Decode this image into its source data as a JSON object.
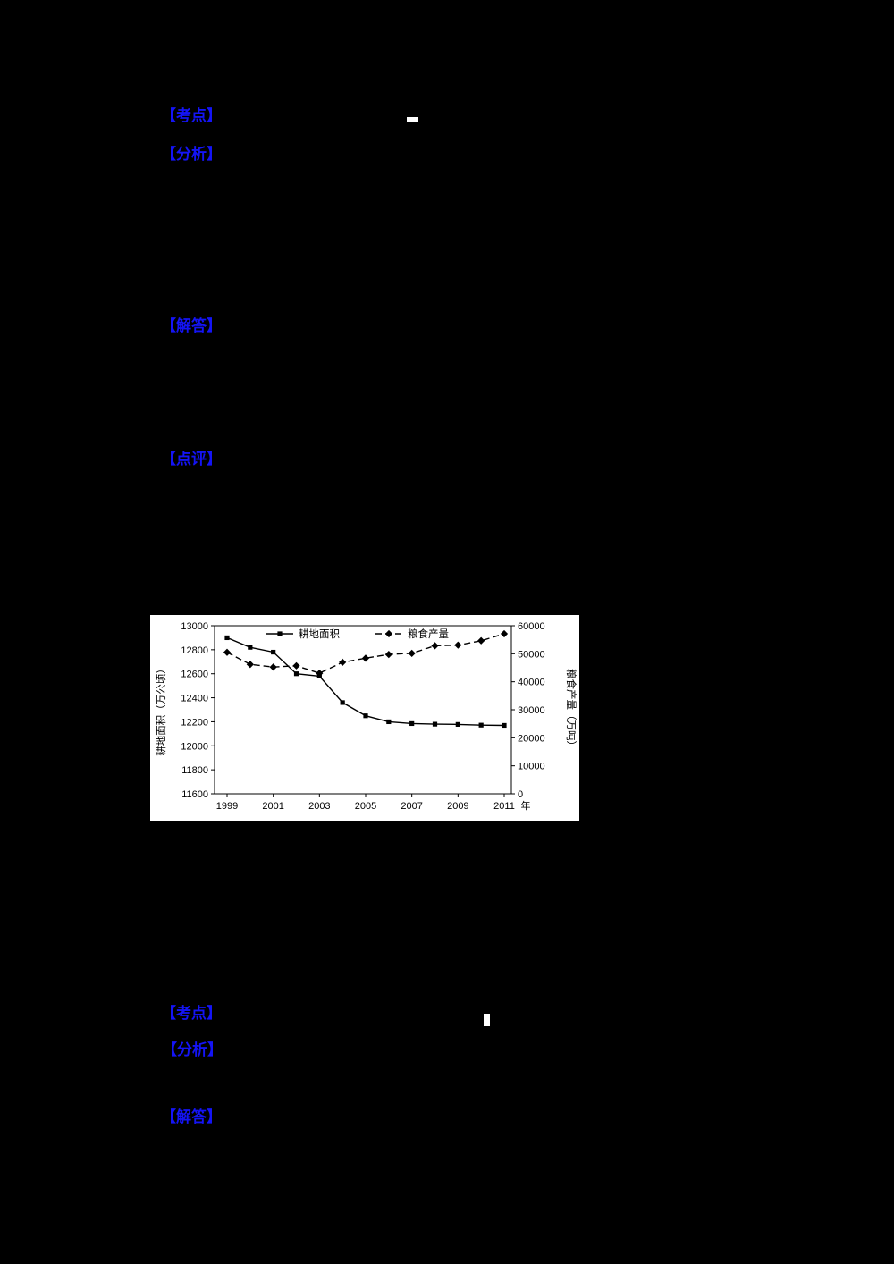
{
  "page": {
    "background": "#000000",
    "accent_blue": "#1414f5"
  },
  "labels": [
    {
      "text": "【考点】"
    },
    {
      "text": "【分析】"
    },
    {
      "text": "【解答】"
    },
    {
      "text": "【点评】"
    },
    {
      "text": "【考点】"
    },
    {
      "text": "【分析】"
    },
    {
      "text": "【解答】"
    }
  ],
  "chart_data": {
    "type": "line",
    "title": "",
    "x": [
      1999,
      2000,
      2001,
      2002,
      2003,
      2004,
      2005,
      2006,
      2007,
      2008,
      2009,
      2010,
      2011
    ],
    "x_axis": {
      "tick_years": [
        1999,
        2001,
        2003,
        2005,
        2007,
        2009,
        2011
      ],
      "unit_suffix": "年"
    },
    "series": [
      {
        "name": "耕地面积",
        "axis": "left",
        "marker": "square",
        "line_style": "solid",
        "values": [
          12900,
          12820,
          12780,
          12600,
          12580,
          12360,
          12250,
          12200,
          12185,
          12180,
          12178,
          12172,
          12170
        ]
      },
      {
        "name": "粮食产量",
        "axis": "right",
        "marker": "diamond",
        "line_style": "dashed",
        "values": [
          50500,
          46200,
          45250,
          45700,
          43050,
          46950,
          48400,
          49750,
          50150,
          52850,
          53080,
          54650,
          57120
        ]
      }
    ],
    "left_axis": {
      "title": "耕地面积（万公顷）",
      "min": 11600,
      "max": 13000,
      "step": 200
    },
    "right_axis": {
      "title": "粮食产量（万吨）",
      "min": 0,
      "max": 60000,
      "step": 10000
    },
    "legend": {
      "position": "top",
      "entries": [
        "耕地面积",
        "粮食产量"
      ]
    },
    "grid": false,
    "background": "#ffffff",
    "line_color": "#000000"
  }
}
